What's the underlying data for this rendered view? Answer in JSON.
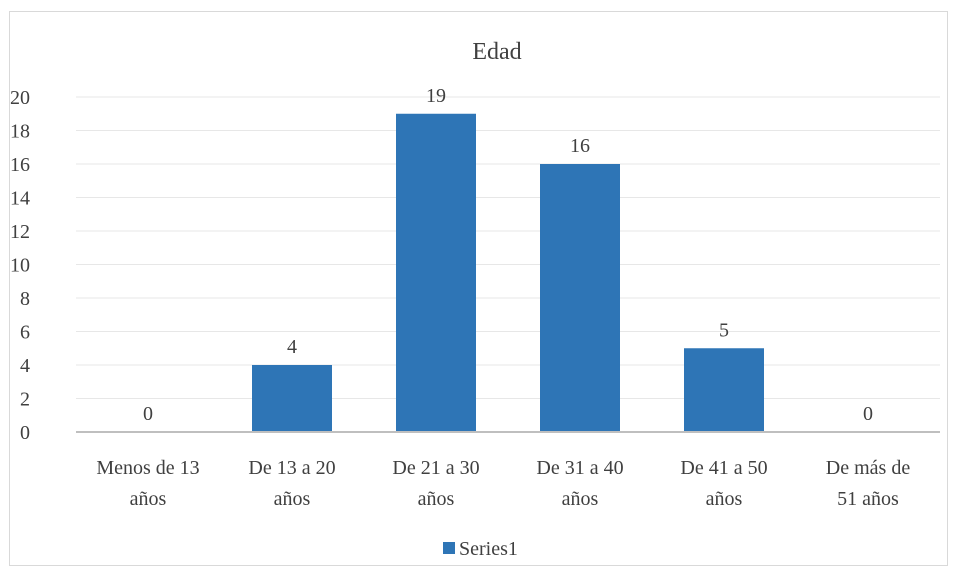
{
  "chart_data": {
    "type": "bar",
    "title": "Edad",
    "categories": [
      [
        "Menos de 13",
        "años"
      ],
      [
        "De 13 a 20",
        "años"
      ],
      [
        "De 21 a 30",
        "años"
      ],
      [
        "De 31 a 40",
        "años"
      ],
      [
        "De 41 a 50",
        "años"
      ],
      [
        "De más de",
        "51 años"
      ]
    ],
    "series": [
      {
        "name": "Series1",
        "values": [
          0,
          4,
          19,
          16,
          5,
          0
        ],
        "color": "#2e75b6"
      }
    ],
    "y_ticks": [
      "0",
      "2",
      "4",
      "6",
      "8",
      "10",
      "12",
      "14",
      "16",
      "18",
      "20"
    ],
    "ylim": [
      0,
      20
    ],
    "data_labels": [
      "0",
      "4",
      "19",
      "16",
      "5",
      "0"
    ],
    "grid": true,
    "legend_position": "bottom"
  }
}
